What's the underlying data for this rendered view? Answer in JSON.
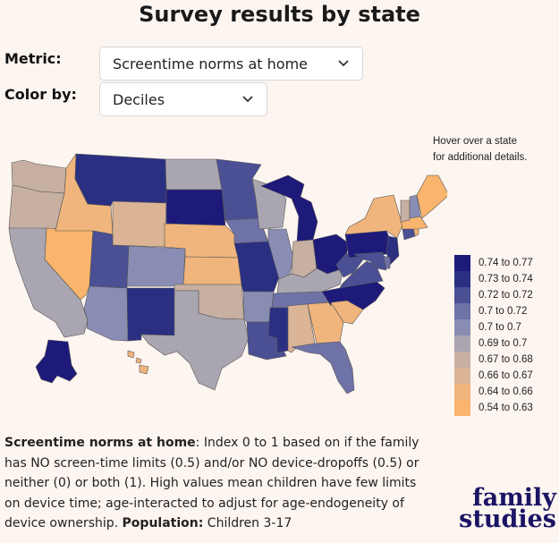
{
  "page_title": "Survey results by state",
  "controls": {
    "metric_label": "Metric:",
    "metric_value": "Screentime norms at home",
    "color_label": "Color by:",
    "color_value": "Deciles"
  },
  "hint": {
    "line1": "Hover over a state",
    "line2": "for additional details."
  },
  "colors": {
    "d10": "#1e1a7a",
    "d9": "#2b2f82",
    "d8": "#4b4f94",
    "d7": "#6f72a6",
    "d6": "#8a8db3",
    "d5": "#aaa6b1",
    "d4": "#c7b0a2",
    "d3": "#dbb496",
    "d2": "#f0b57d",
    "d1": "#f9b46d"
  },
  "legend": [
    {
      "label": "0.74 to 0.77",
      "color": "#1e1a7a"
    },
    {
      "label": "0.73 to 0.74",
      "color": "#2b2f82"
    },
    {
      "label": "0.72 to 0.72",
      "color": "#4b4f94"
    },
    {
      "label": "0.7 to 0.72",
      "color": "#6f72a6"
    },
    {
      "label": "0.7 to 0.7",
      "color": "#8a8db3"
    },
    {
      "label": "0.69 to 0.7",
      "color": "#aaa6b1"
    },
    {
      "label": "0.67 to 0.68",
      "color": "#c7b0a2"
    },
    {
      "label": "0.66 to 0.67",
      "color": "#dbb496"
    },
    {
      "label": "0.64 to 0.66",
      "color": "#f0b57d"
    },
    {
      "label": "0.54 to 0.63",
      "color": "#f9b46d"
    }
  ],
  "description": {
    "term": "Screentime norms at home",
    "body": ": Index 0 to 1 based on if the family has NO screen-time limits (0.5) and/or NO device-dropoffs (0.5) or neither (0) or both (1). High values mean children have few limits on device time; age-interacted to adjust for age-endogeneity of device ownership. ",
    "population_label": "Population:",
    "population_value": " Children 3-17"
  },
  "brand": {
    "line1": "family",
    "line2": "studies"
  },
  "states": {
    "WA": "d4",
    "OR": "d4",
    "CA": "d5",
    "NV": "d1",
    "ID": "d2",
    "MT": "d9",
    "WY": "d3",
    "UT": "d8",
    "CO": "d6",
    "AZ": "d6",
    "NM": "d9",
    "ND": "d5",
    "SD": "d10",
    "NE": "d2",
    "KS": "d2",
    "OK": "d4",
    "TX": "d5",
    "MN": "d8",
    "IA": "d7",
    "MO": "d9",
    "AR": "d6",
    "LA": "d8",
    "WI": "d5",
    "IL": "d6",
    "MI": "d10",
    "IN": "d4",
    "OH": "d10",
    "KY": "d5",
    "TN": "d7",
    "MS": "d9",
    "AL": "d3",
    "GA": "d2",
    "FL": "d7",
    "SC": "d2",
    "NC": "d10",
    "VA": "d8",
    "WV": "d8",
    "PA": "d10",
    "NY": "d2",
    "NJ": "d9",
    "DE": "d7",
    "MD": "d8",
    "CT": "d8",
    "RI": "d2",
    "MA": "d1",
    "VT": "d4",
    "NH": "d6",
    "ME": "d1",
    "AK": "d10",
    "HI": "d2"
  }
}
